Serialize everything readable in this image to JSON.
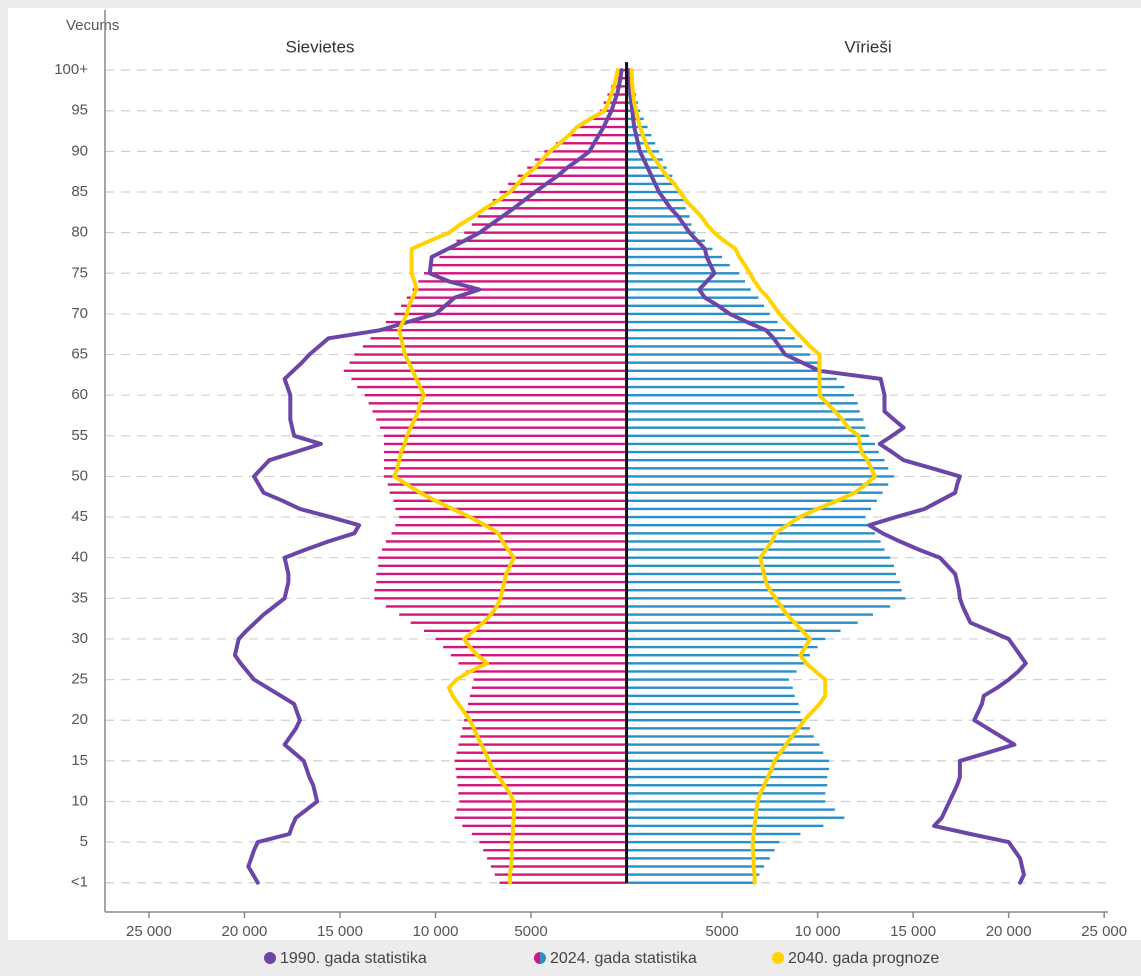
{
  "chart_data": {
    "type": "pyramid",
    "y_label": "Vecums",
    "left_label": "Sievietes",
    "right_label": "Vīrieši",
    "xlim": [
      -27300,
      25200
    ],
    "xticks": [
      {
        "value": -25000,
        "label": "25 000"
      },
      {
        "value": -20000,
        "label": "20 000"
      },
      {
        "value": -15000,
        "label": "15 000"
      },
      {
        "value": -10000,
        "label": "10 000"
      },
      {
        "value": -5000,
        "label": "5000"
      },
      {
        "value": 5000,
        "label": "5000"
      },
      {
        "value": 10000,
        "label": "10 000"
      },
      {
        "value": 15000,
        "label": "15 000"
      },
      {
        "value": 20000,
        "label": "20 000"
      },
      {
        "value": 25000,
        "label": "25 000"
      }
    ],
    "ylim": [
      -3.6,
      107.4
    ],
    "yticks": [
      {
        "value": 0,
        "label": "<1"
      },
      5,
      10,
      15,
      20,
      25,
      30,
      35,
      40,
      45,
      50,
      55,
      60,
      65,
      70,
      75,
      80,
      85,
      90,
      95,
      {
        "value": 100,
        "label": "100+"
      }
    ],
    "grid": true,
    "y": [
      0,
      1,
      2,
      3,
      4,
      5,
      6,
      7,
      8,
      9,
      10,
      11,
      12,
      13,
      14,
      15,
      16,
      17,
      18,
      19,
      20,
      21,
      22,
      23,
      24,
      25,
      26,
      27,
      28,
      29,
      30,
      31,
      32,
      33,
      34,
      35,
      36,
      37,
      38,
      39,
      40,
      41,
      42,
      43,
      44,
      45,
      46,
      47,
      48,
      49,
      50,
      51,
      52,
      53,
      54,
      55,
      56,
      57,
      58,
      59,
      60,
      61,
      62,
      63,
      64,
      65,
      66,
      67,
      68,
      69,
      70,
      71,
      72,
      73,
      74,
      75,
      76,
      77,
      78,
      79,
      80,
      81,
      82,
      83,
      84,
      85,
      86,
      87,
      88,
      89,
      90,
      91,
      92,
      93,
      94,
      95,
      96,
      97,
      98,
      99,
      100
    ],
    "series": [
      {
        "name": "1990. gada statistika",
        "style": "line",
        "color": "#6b46a8",
        "female": [
          19300,
          19550,
          19800,
          19650,
          19500,
          19300,
          17650,
          17500,
          17300,
          16750,
          16200,
          16300,
          16400,
          16600,
          16750,
          16900,
          17400,
          17900,
          17600,
          17300,
          17100,
          17250,
          17400,
          18100,
          18800,
          19500,
          19850,
          20200,
          20500,
          20400,
          20300,
          19900,
          19450,
          19000,
          18450,
          17900,
          17800,
          17700,
          17700,
          17800,
          17900,
          16800,
          15600,
          14250,
          14000,
          15500,
          17100,
          18000,
          19000,
          19250,
          19500,
          19100,
          18700,
          17350,
          16000,
          17400,
          17500,
          17600,
          17600,
          17600,
          17600,
          17750,
          17900,
          17450,
          17000,
          16600,
          16100,
          15600,
          12900,
          11450,
          10000,
          9500,
          9000,
          7700,
          9300,
          10300,
          10250,
          10200,
          9350,
          8500,
          7700,
          7100,
          6500,
          5900,
          5350,
          4800,
          4200,
          3600,
          3100,
          2500,
          1940,
          1700,
          1450,
          1200,
          1000,
          790,
          650,
          500,
          400,
          320,
          260
        ],
        "male": [
          20600,
          20800,
          20700,
          20600,
          20300,
          20000,
          18000,
          16100,
          16500,
          16700,
          16900,
          17100,
          17300,
          17450,
          17450,
          17450,
          18900,
          20300,
          19600,
          18900,
          18200,
          18400,
          18600,
          18700,
          19400,
          20000,
          20500,
          20900,
          20600,
          20300,
          20000,
          19000,
          18000,
          17800,
          17600,
          17450,
          17400,
          17300,
          17200,
          16800,
          16400,
          15300,
          14300,
          13400,
          12700,
          14100,
          15600,
          16400,
          17200,
          17300,
          17450,
          16000,
          14500,
          13900,
          13250,
          13900,
          14500,
          14000,
          13500,
          13500,
          13500,
          13400,
          13300,
          10100,
          9200,
          8300,
          8000,
          7700,
          7300,
          6300,
          5400,
          4800,
          4100,
          3800,
          4200,
          4600,
          4400,
          4200,
          4100,
          3700,
          3300,
          3000,
          2700,
          2300,
          2000,
          1700,
          1500,
          1300,
          1100,
          900,
          700,
          600,
          500,
          400,
          350,
          300,
          250,
          200,
          180,
          160,
          150
        ]
      },
      {
        "name": "2024. gada statistika",
        "style": "bar",
        "colors": [
          "#d4157f",
          "#2b90c8"
        ],
        "female": [
          6650,
          6900,
          7100,
          7300,
          7500,
          7700,
          8100,
          8600,
          9000,
          8900,
          8750,
          8800,
          8850,
          8900,
          8950,
          9000,
          8900,
          8800,
          8700,
          8600,
          8500,
          8400,
          8300,
          8200,
          8100,
          8000,
          8400,
          8800,
          9200,
          9600,
          10000,
          10600,
          11300,
          11900,
          12600,
          13200,
          13200,
          13100,
          13100,
          13000,
          13000,
          12800,
          12600,
          12300,
          12100,
          11900,
          12100,
          12200,
          12400,
          12500,
          12700,
          12700,
          12700,
          12700,
          12700,
          12700,
          12900,
          13100,
          13300,
          13500,
          13700,
          14100,
          14400,
          14800,
          14500,
          14250,
          13800,
          13400,
          13000,
          12600,
          12150,
          11800,
          11500,
          11200,
          10900,
          10600,
          10200,
          9800,
          9300,
          8900,
          8500,
          8100,
          7800,
          7400,
          7000,
          6650,
          6200,
          5700,
          5200,
          4800,
          4300,
          3700,
          3100,
          2600,
          2000,
          1400,
          1200,
          1000,
          800,
          600,
          470
        ],
        "male": [
          6700,
          6950,
          7200,
          7500,
          7750,
          8000,
          9100,
          10300,
          11400,
          10900,
          10400,
          10400,
          10500,
          10500,
          10600,
          10600,
          10300,
          10100,
          9800,
          9600,
          9300,
          9100,
          9000,
          8800,
          8700,
          8500,
          8900,
          9300,
          9600,
          10000,
          10400,
          11200,
          12100,
          12900,
          13800,
          14600,
          14400,
          14300,
          14100,
          14000,
          13800,
          13500,
          13300,
          13000,
          12800,
          12500,
          12800,
          13100,
          13400,
          13700,
          14000,
          13700,
          13500,
          13200,
          13000,
          12700,
          12500,
          12400,
          12200,
          12100,
          11900,
          11400,
          11000,
          10500,
          10100,
          9600,
          9200,
          8800,
          8300,
          7900,
          7500,
          7200,
          6900,
          6500,
          6200,
          5900,
          5400,
          5000,
          4500,
          4100,
          3600,
          3400,
          3300,
          3100,
          3000,
          2800,
          2600,
          2400,
          2100,
          1900,
          1700,
          1500,
          1300,
          1100,
          900,
          700,
          600,
          500,
          400,
          300,
          260
        ]
      },
      {
        "name": "2040. gada prognoze",
        "style": "line",
        "color": "#ffd200",
        "female": [
          6100,
          6100,
          6050,
          6000,
          6000,
          6000,
          5950,
          5950,
          5900,
          5900,
          5900,
          6100,
          6400,
          6700,
          7000,
          7200,
          7400,
          7600,
          7800,
          8000,
          8200,
          8500,
          8800,
          9100,
          9300,
          8900,
          8200,
          7300,
          7800,
          8200,
          8500,
          8000,
          7500,
          7100,
          6800,
          6600,
          6500,
          6400,
          6300,
          6100,
          5900,
          6200,
          6500,
          6700,
          7400,
          8200,
          9100,
          10000,
          10800,
          11500,
          12150,
          12000,
          11900,
          11800,
          11600,
          11500,
          11300,
          11100,
          10900,
          10800,
          10600,
          10800,
          11000,
          11200,
          11400,
          11600,
          11700,
          11800,
          11900,
          11700,
          11500,
          11400,
          11200,
          11000,
          11100,
          11250,
          11250,
          11250,
          11250,
          10300,
          9300,
          8700,
          8000,
          7400,
          6700,
          6100,
          5700,
          5300,
          4800,
          4400,
          4000,
          3500,
          3000,
          2600,
          1900,
          1150,
          950,
          800,
          650,
          550,
          470
        ],
        "male": [
          6700,
          6700,
          6650,
          6650,
          6600,
          6600,
          6650,
          6700,
          6750,
          6800,
          6860,
          7000,
          7200,
          7400,
          7600,
          7750,
          8050,
          8350,
          8650,
          9000,
          9300,
          9700,
          10100,
          10400,
          10400,
          10400,
          9900,
          9400,
          9100,
          9350,
          9600,
          9200,
          8800,
          8400,
          8100,
          7800,
          7500,
          7300,
          7200,
          7100,
          7000,
          7300,
          7600,
          7800,
          8400,
          9050,
          10000,
          11000,
          11950,
          12500,
          13000,
          12800,
          12600,
          12300,
          12200,
          12150,
          11600,
          11300,
          10900,
          10500,
          10100,
          10100,
          10100,
          10100,
          10100,
          10100,
          9600,
          9200,
          8800,
          8400,
          8000,
          7700,
          7400,
          7000,
          6700,
          6450,
          6200,
          5900,
          5700,
          5100,
          4600,
          4200,
          3900,
          3500,
          3100,
          2800,
          2500,
          2100,
          1800,
          1500,
          1200,
          1000,
          850,
          700,
          600,
          500,
          400,
          350,
          300,
          280,
          260
        ]
      }
    ]
  }
}
